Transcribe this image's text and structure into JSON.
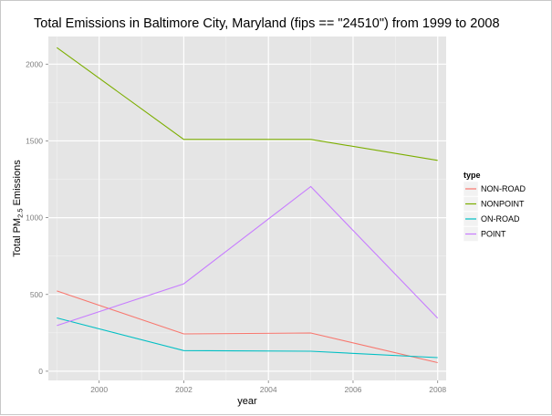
{
  "chart_data": {
    "type": "line",
    "title": "Total Emissions in Baltimore City, Maryland (fips == \"24510\") from 1999 to 2008",
    "xlabel": "year",
    "ylabel_prefix": "Total PM",
    "ylabel_subscript": "2.5",
    "ylabel_suffix": " Emissions",
    "x": [
      1999,
      2002,
      2005,
      2008
    ],
    "xlim": [
      1998.8,
      2008.2
    ],
    "ylim": [
      -60,
      2180
    ],
    "x_ticks": [
      2000,
      2002,
      2004,
      2006,
      2008
    ],
    "x_tick_labels": [
      "2000",
      "2002",
      "2004",
      "2006",
      "2008"
    ],
    "y_ticks": [
      0,
      500,
      1000,
      1500,
      2000
    ],
    "y_tick_labels": [
      "0",
      "500",
      "1000",
      "1500",
      "2000"
    ],
    "grid": true,
    "background": "#e5e5e5",
    "legend": {
      "title": "type",
      "position": "right"
    },
    "series": [
      {
        "name": "NON-ROAD",
        "color": "#f8766d",
        "values": [
          522.9,
          242.8,
          248.9,
          55.8
        ]
      },
      {
        "name": "NONPOINT",
        "color": "#7cae00",
        "values": [
          2107.6,
          1509.5,
          1509.5,
          1373.2
        ]
      },
      {
        "name": "ON-ROAD",
        "color": "#00bfc4",
        "values": [
          346.8,
          134.3,
          130.4,
          88.3
        ]
      },
      {
        "name": "POINT",
        "color": "#c77cff",
        "values": [
          296.8,
          569.3,
          1202.5,
          344.98
        ]
      }
    ]
  }
}
